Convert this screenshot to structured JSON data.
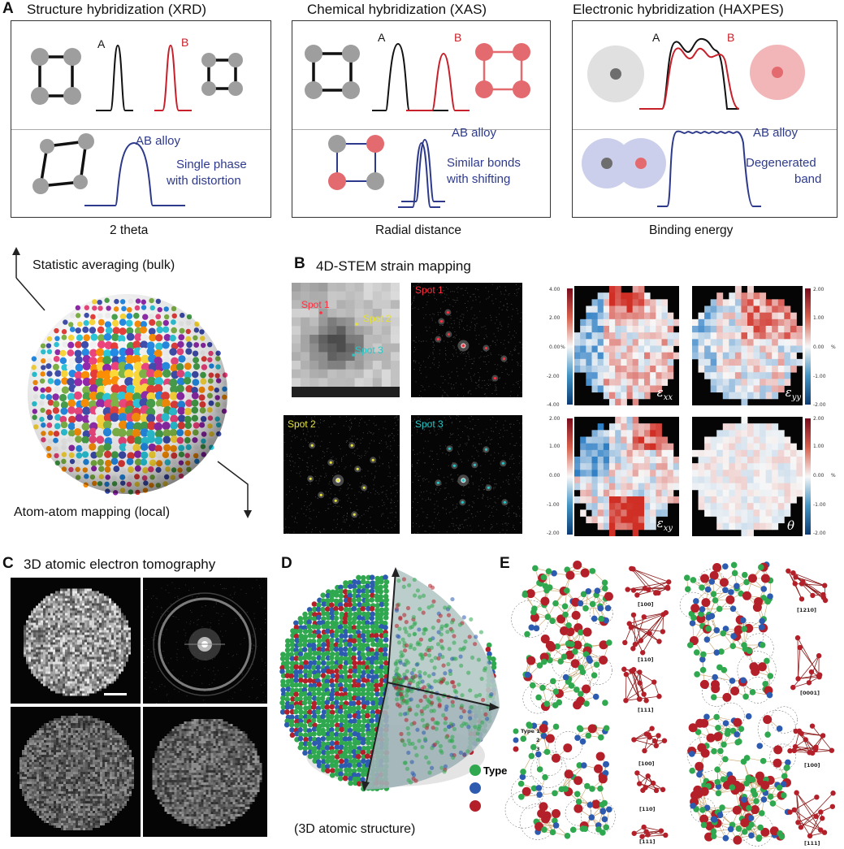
{
  "panels": {
    "a": "A",
    "b": "B",
    "c": "C",
    "d": "D",
    "e": "E"
  },
  "xrd": {
    "title": "Structure hybridization (XRD)",
    "label_a": "A",
    "label_b": "B",
    "alloy": "AB alloy",
    "desc_line1": "Single phase",
    "desc_line2": "with distortion",
    "axis": "2 theta"
  },
  "xas": {
    "title": "Chemical hybridization (XAS)",
    "label_a": "A",
    "label_b": "B",
    "alloy": "AB alloy",
    "desc_line1": "Similar bonds",
    "desc_line2": "with shifting",
    "axis": "Radial distance"
  },
  "haxpes": {
    "title": "Electronic hybridization (HAXPES)",
    "label_a": "A",
    "label_b": "B",
    "alloy": "AB alloy",
    "desc_line1": "Degenerated",
    "desc_line2": "band",
    "axis": "Binding energy"
  },
  "flow": {
    "bulk": "Statistic averaging (bulk)",
    "local": "Atom-atom mapping (local)"
  },
  "stem": {
    "title": "4D-STEM strain mapping",
    "spot1": "Spot 1",
    "spot2": "Spot 2",
    "spot3": "Spot 3",
    "maps": {
      "exx": "ε",
      "exx_sub": "xx",
      "eyy": "ε",
      "eyy_sub": "yy",
      "exy": "ε",
      "exy_sub": "xy",
      "theta": "θ"
    },
    "colorbar_left": [
      "4.00",
      "2.00",
      "0.00",
      "-2.00",
      "-4.00"
    ],
    "colorbar_right": [
      "2.00",
      "1.00",
      "0.00",
      "-1.00",
      "-2.00"
    ],
    "colorbar_bottom_left": [
      "2.00",
      "1.00",
      "0.00",
      "-1.00",
      "-2.00"
    ],
    "unit": "%"
  },
  "aet": {
    "title": "3D atomic electron tomography"
  },
  "structure": {
    "caption": "(3D atomic structure)",
    "legend_title": "Type",
    "colors": {
      "type1": "#2fa84f",
      "type2": "#2c5bb0",
      "type3": "#b3202a"
    }
  },
  "motifs": {
    "legend": [
      "Type 1",
      "2",
      "3"
    ],
    "top_left": [
      "[100]",
      "[110]",
      "[111]"
    ],
    "top_right": [
      "[1210]",
      "[0001]"
    ],
    "bottom_left": [
      "[100]",
      "[110]",
      "[111]"
    ],
    "bottom_right": [
      "[100]",
      "[111]"
    ]
  }
}
